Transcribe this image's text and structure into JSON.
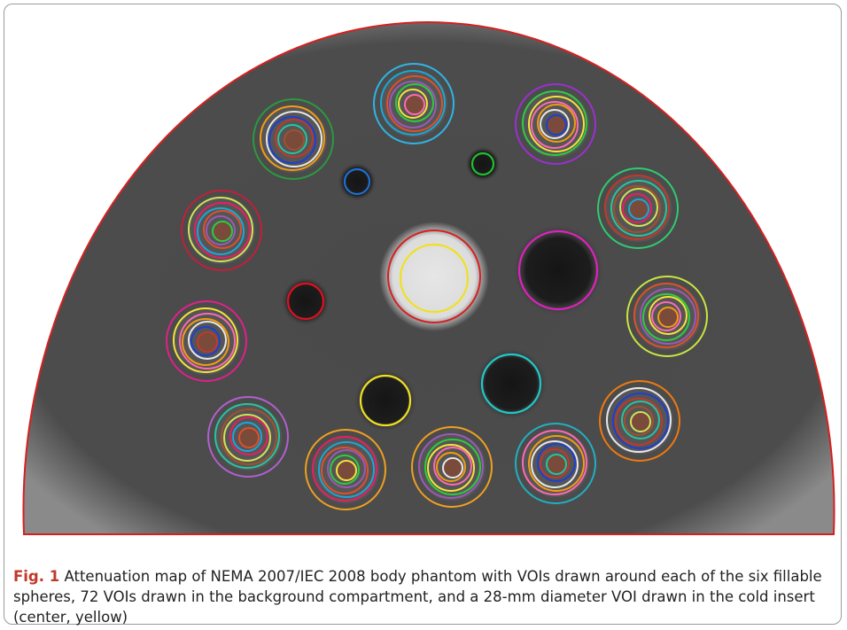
{
  "figure": {
    "label": "Fig. 1",
    "caption": "Attenuation map of NEMA 2007/IEC 2008 body phantom with VOIs drawn around each of the six fillable spheres, 72 VOIs drawn in the background compartment, and a 28-mm diameter VOI drawn in the cold insert (center, yellow)"
  }
}
